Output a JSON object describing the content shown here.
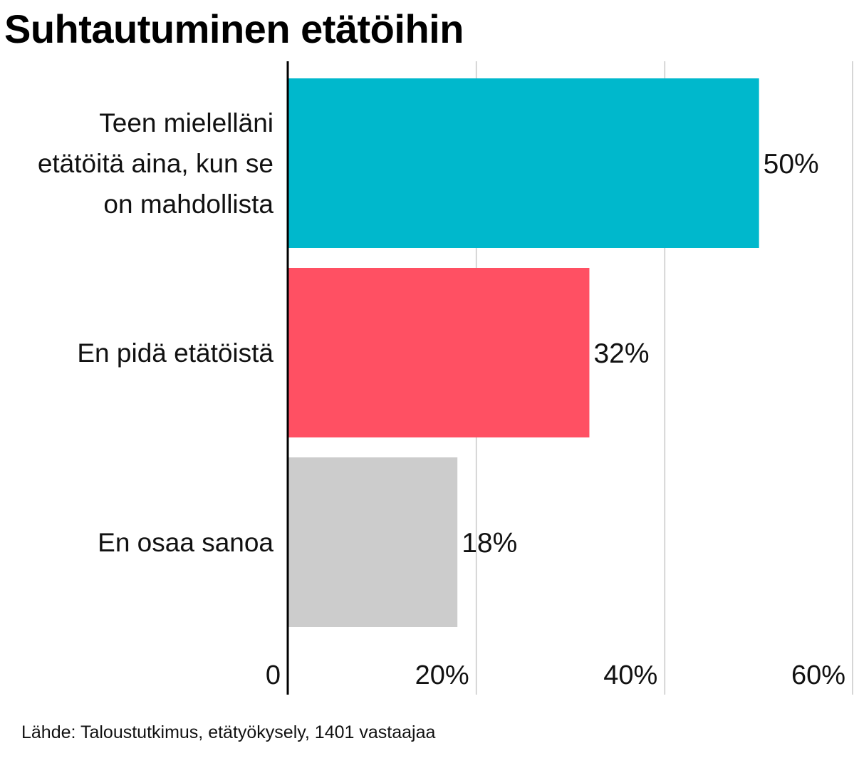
{
  "title": "Suhtautuminen etätöihin",
  "source": "Lähde: Taloustutkimus, etätyökysely, 1401 vastaajaa",
  "chart_data": {
    "type": "bar",
    "orientation": "horizontal",
    "title": "Suhtautuminen etätöihin",
    "categories": [
      "Teen mielelläni etätöitä aina, kun se on mahdollista",
      "En pidä etätöistä",
      "En osaa sanoa"
    ],
    "category_lines": [
      [
        "Teen mielelläni",
        "etätöitä aina, kun se",
        "on mahdollista"
      ],
      [
        "En pidä etätöistä"
      ],
      [
        "En osaa sanoa"
      ]
    ],
    "values": [
      50,
      32,
      18
    ],
    "value_labels": [
      "50%",
      "32%",
      "18%"
    ],
    "colors": [
      "#00b8cc",
      "#ff5063",
      "#cccccc"
    ],
    "xlim": [
      0,
      60
    ],
    "ticks": [
      0,
      20,
      40,
      60
    ],
    "tick_labels": [
      "0",
      "20%",
      "40%",
      "60%"
    ],
    "grid": true,
    "legend": "none"
  }
}
